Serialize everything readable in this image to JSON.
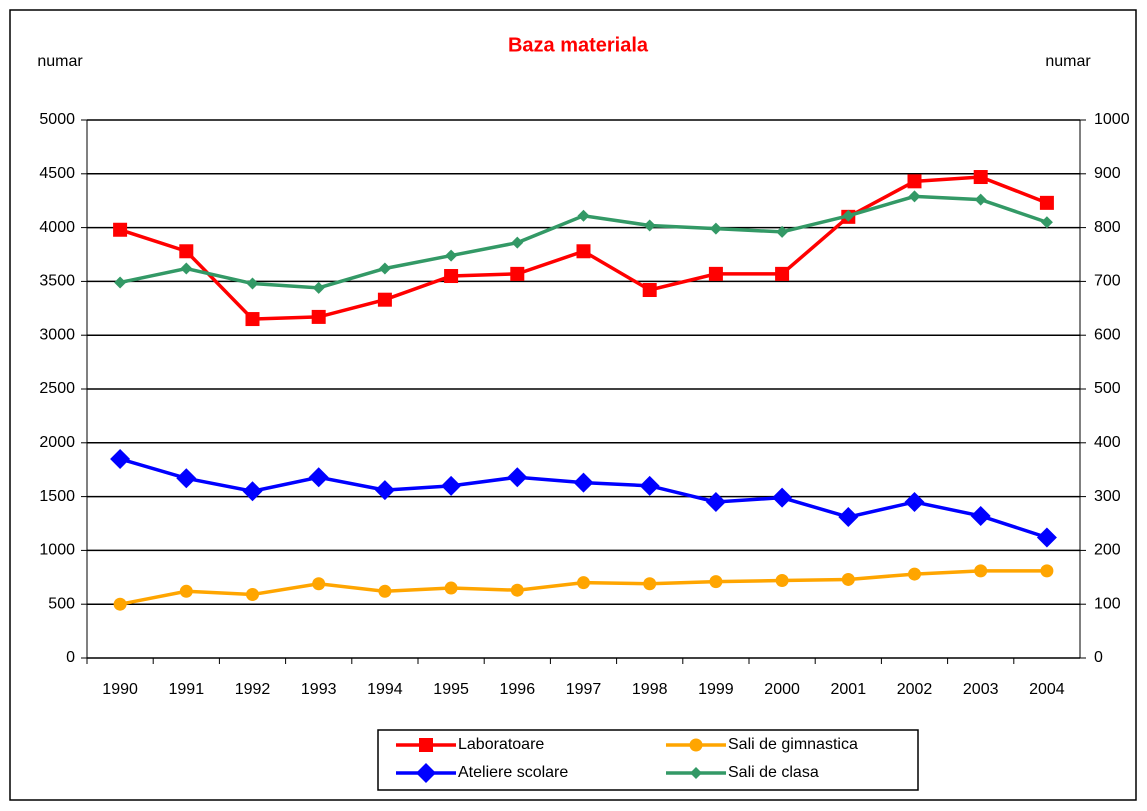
{
  "chart_data": {
    "type": "line",
    "title": "Baza materiala",
    "ylabel": "numar",
    "y2label": "numar",
    "categories": [
      "1990",
      "1991",
      "1992",
      "1993",
      "1994",
      "1995",
      "1996",
      "1997",
      "1998",
      "1999",
      "2000",
      "2001",
      "2002",
      "2003",
      "2004"
    ],
    "ylim": [
      0,
      5000
    ],
    "yticks": [
      0,
      500,
      1000,
      1500,
      2000,
      2500,
      3000,
      3500,
      4000,
      4500,
      5000
    ],
    "y2lim": [
      0,
      1000
    ],
    "y2ticks": [
      0,
      100,
      200,
      300,
      400,
      500,
      600,
      700,
      800,
      900,
      1000
    ],
    "grid": true,
    "legend": "bottom",
    "series": [
      {
        "name": "Laboratoare",
        "color": "#ff0000",
        "marker": "square",
        "axis": "y2",
        "values": [
          796,
          756,
          630,
          634,
          666,
          710,
          714,
          756,
          684,
          714,
          714,
          820,
          886,
          894,
          846
        ]
      },
      {
        "name": "Sali de gimnastica",
        "color": "#ffa500",
        "marker": "circle",
        "axis": "y2",
        "values": [
          100,
          124,
          118,
          138,
          124,
          130,
          126,
          140,
          138,
          142,
          144,
          146,
          156,
          162,
          162
        ]
      },
      {
        "name": "Ateliere scolare",
        "color": "#0000ff",
        "marker": "diamond",
        "axis": "y2",
        "values": [
          370,
          334,
          310,
          336,
          312,
          320,
          336,
          326,
          320,
          290,
          298,
          262,
          290,
          264,
          224
        ]
      },
      {
        "name": "Sali de clasa",
        "color": "#339966",
        "marker": "small-diamond",
        "values": [
          3490,
          3620,
          3480,
          3440,
          3620,
          3740,
          3860,
          4110,
          4020,
          3990,
          3960,
          4110,
          4290,
          4260,
          4050
        ]
      }
    ]
  }
}
